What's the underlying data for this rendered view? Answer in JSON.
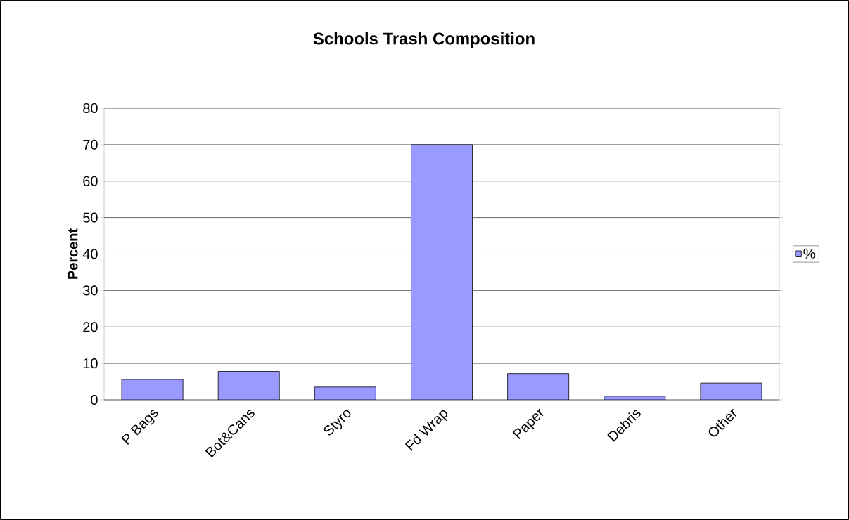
{
  "chart_data": {
    "type": "bar",
    "title": "Schools Trash Composition",
    "ylabel": "Percent",
    "categories": [
      "P Bags",
      "Bot&Cans",
      "Styro",
      "Fd Wrap",
      "Paper",
      "Debris",
      "Other"
    ],
    "series": [
      {
        "name": "%",
        "color": "#9999ff",
        "values": [
          5.6,
          7.8,
          3.5,
          70,
          7.2,
          1.0,
          4.6
        ]
      }
    ],
    "ylim": [
      0,
      80
    ],
    "yticks": [
      0,
      10,
      20,
      30,
      40,
      50,
      60,
      70,
      80
    ],
    "grid": "y",
    "legend": "right"
  }
}
